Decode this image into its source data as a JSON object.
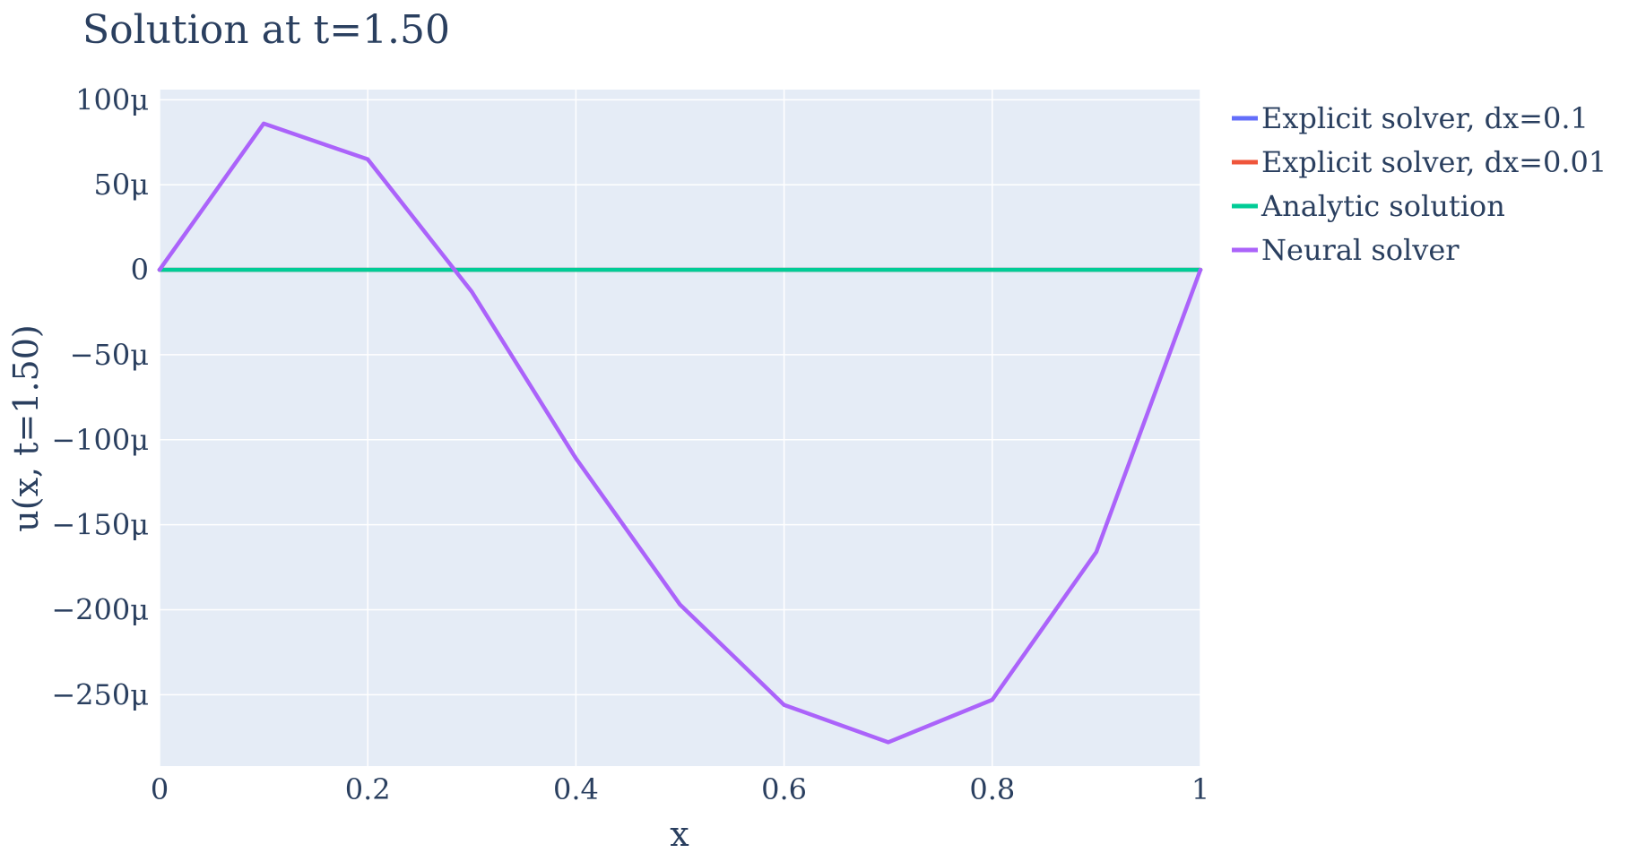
{
  "chart_data": {
    "type": "line",
    "title": "Solution at t=1.50",
    "xlabel": "x",
    "ylabel": "u(x, t=1.50)",
    "xlim": [
      0,
      1
    ],
    "ylim": [
      -0.0003,
      0.0001
    ],
    "xticks": [
      {
        "value": 0,
        "label": "0"
      },
      {
        "value": 0.2,
        "label": "0.2"
      },
      {
        "value": 0.4,
        "label": "0.4"
      },
      {
        "value": 0.6,
        "label": "0.6"
      },
      {
        "value": 0.8,
        "label": "0.8"
      },
      {
        "value": 1,
        "label": "1"
      }
    ],
    "yticks": [
      {
        "value": 0.0001,
        "label": "100μ"
      },
      {
        "value": 5e-05,
        "label": "50μ"
      },
      {
        "value": 0,
        "label": "0"
      },
      {
        "value": -5e-05,
        "label": "−50μ"
      },
      {
        "value": -0.0001,
        "label": "−100μ"
      },
      {
        "value": -0.00015,
        "label": "−150μ"
      },
      {
        "value": -0.0002,
        "label": "−200μ"
      },
      {
        "value": -0.00025,
        "label": "−250μ"
      }
    ],
    "grid": true,
    "plot_bgcolor": "#e5ecf6",
    "legend_position": "top-right outside",
    "series": [
      {
        "name": "Explicit solver, dx=0.1",
        "color": "#636efa",
        "x": [
          0,
          0.1,
          0.2,
          0.3,
          0.4,
          0.5,
          0.6,
          0.7,
          0.8,
          0.9,
          1.0
        ],
        "y": [
          0,
          0,
          0,
          0,
          0,
          0,
          0,
          0,
          0,
          0,
          0
        ]
      },
      {
        "name": "Explicit solver, dx=0.01",
        "color": "#ef553b",
        "x": [
          0,
          0.1,
          0.2,
          0.3,
          0.4,
          0.5,
          0.6,
          0.7,
          0.8,
          0.9,
          1.0
        ],
        "y": [
          0,
          0,
          0,
          0,
          0,
          0,
          0,
          0,
          0,
          0,
          0
        ]
      },
      {
        "name": "Analytic solution",
        "color": "#00cc96",
        "x": [
          0,
          0.1,
          0.2,
          0.3,
          0.4,
          0.5,
          0.6,
          0.7,
          0.8,
          0.9,
          1.0
        ],
        "y": [
          0,
          0,
          0,
          0,
          0,
          0,
          0,
          0,
          0,
          0,
          0
        ]
      },
      {
        "name": "Neural solver",
        "color": "#ab63fa",
        "x": [
          0,
          0.1,
          0.2,
          0.3,
          0.4,
          0.5,
          0.6,
          0.7,
          0.8,
          0.9,
          1.0
        ],
        "y": [
          0,
          8.6e-05,
          6.5e-05,
          -1.3e-05,
          -0.000111,
          -0.000197,
          -0.000256,
          -0.000278,
          -0.000253,
          -0.000166,
          0
        ]
      }
    ]
  }
}
